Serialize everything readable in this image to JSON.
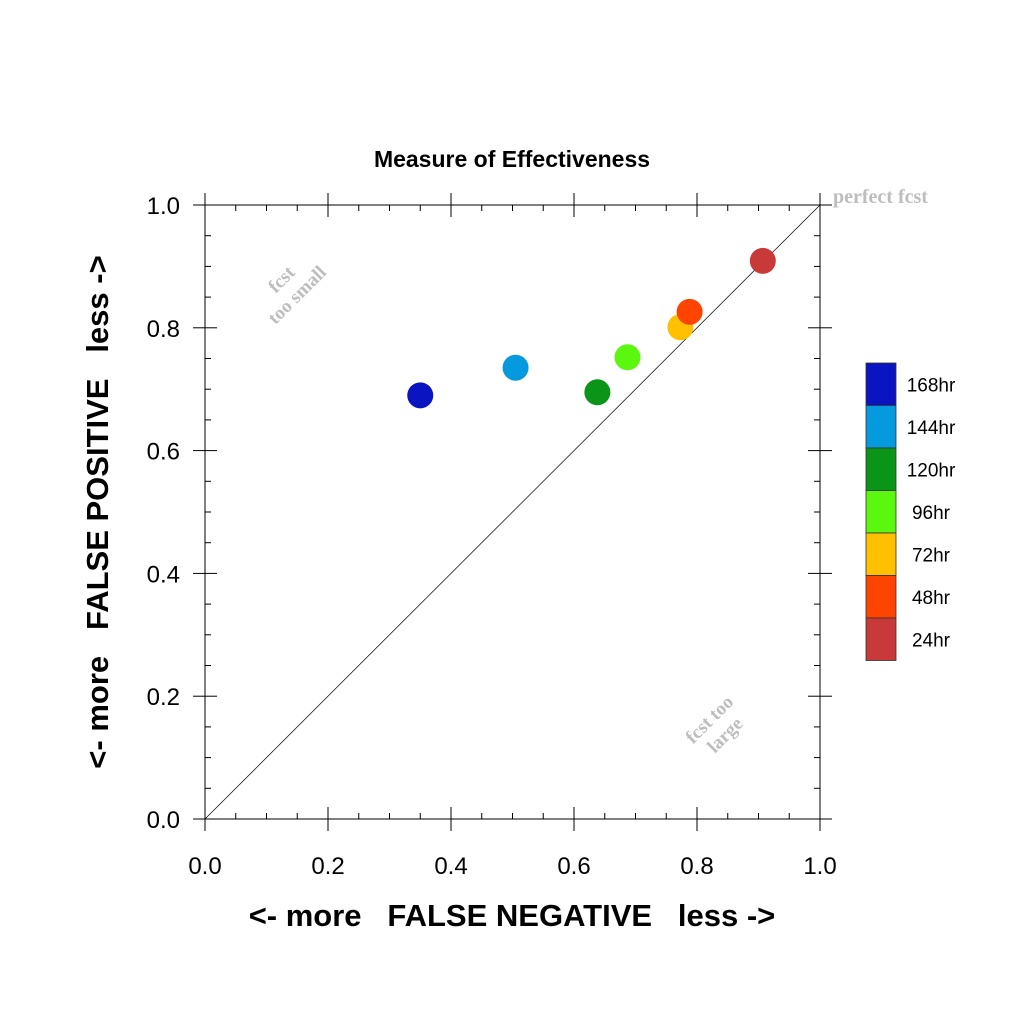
{
  "chart_data": {
    "type": "scatter",
    "title": "Measure of Effectiveness",
    "xlabel": "<- more   FALSE NEGATIVE   less ->",
    "ylabel": "<- more   FALSE POSITIVE   less ->",
    "xlim": [
      0.0,
      1.0
    ],
    "ylim": [
      0.0,
      1.0
    ],
    "xticks": [
      "0.0",
      "0.2",
      "0.4",
      "0.6",
      "0.8",
      "1.0"
    ],
    "yticks": [
      "0.0",
      "0.2",
      "0.4",
      "0.6",
      "0.8",
      "1.0"
    ],
    "grid": false,
    "legend_position": "right",
    "points": [
      {
        "name": "168hr",
        "x": 0.35,
        "y": 0.69,
        "color": "#0a14c0"
      },
      {
        "name": "144hr",
        "x": 0.505,
        "y": 0.735,
        "color": "#0599dd"
      },
      {
        "name": "120hr",
        "x": 0.638,
        "y": 0.695,
        "color": "#0a9418"
      },
      {
        "name": "96hr",
        "x": 0.687,
        "y": 0.752,
        "color": "#5cf70e"
      },
      {
        "name": "72hr",
        "x": 0.773,
        "y": 0.801,
        "color": "#ffc000"
      },
      {
        "name": "48hr",
        "x": 0.788,
        "y": 0.826,
        "color": "#ff4400"
      },
      {
        "name": "24hr",
        "x": 0.907,
        "y": 0.909,
        "color": "#c83a3a"
      }
    ],
    "legend": [
      "168hr",
      "144hr",
      "120hr",
      "96hr",
      "72hr",
      "48hr",
      "24hr"
    ],
    "annotations": {
      "diagonal": "perfect fcst",
      "upper_left_1": "fcst",
      "upper_left_2": "too small",
      "lower_right_1": "fcst too",
      "lower_right_2": "large"
    },
    "annotation_color": "#bdbdbd"
  }
}
